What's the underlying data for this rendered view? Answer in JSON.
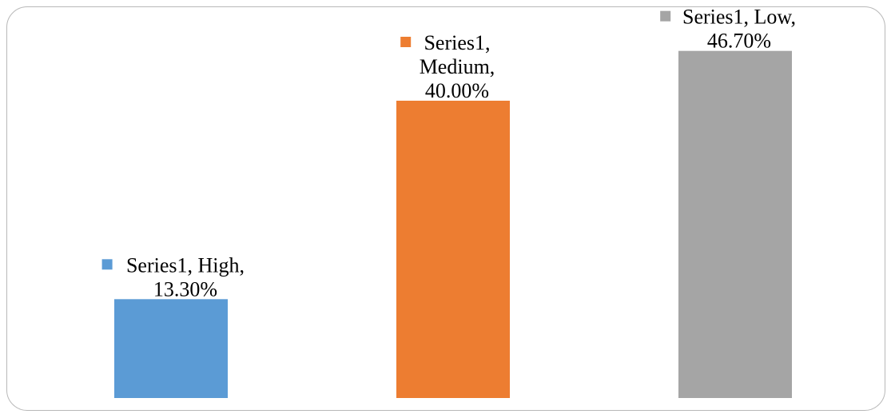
{
  "chart_data": {
    "type": "bar",
    "categories": [
      "High",
      "Medium",
      "Low"
    ],
    "series": [
      {
        "name": "Series1",
        "values": [
          13.3,
          40.0,
          46.7
        ]
      }
    ],
    "value_format": "0.00%",
    "colors": [
      "#5b9bd5",
      "#ed7d31",
      "#a5a5a5"
    ],
    "data_labels": [
      {
        "lines": [
          "Series1, High,",
          "13.30%"
        ]
      },
      {
        "lines": [
          "Series1,",
          "Medium,",
          "40.00%"
        ]
      },
      {
        "lines": [
          "Series1, Low,",
          "46.70%"
        ]
      }
    ],
    "title": "",
    "xlabel": "",
    "ylabel": "",
    "ylim": [
      0,
      50
    ],
    "grid": false,
    "axes_visible": false
  }
}
